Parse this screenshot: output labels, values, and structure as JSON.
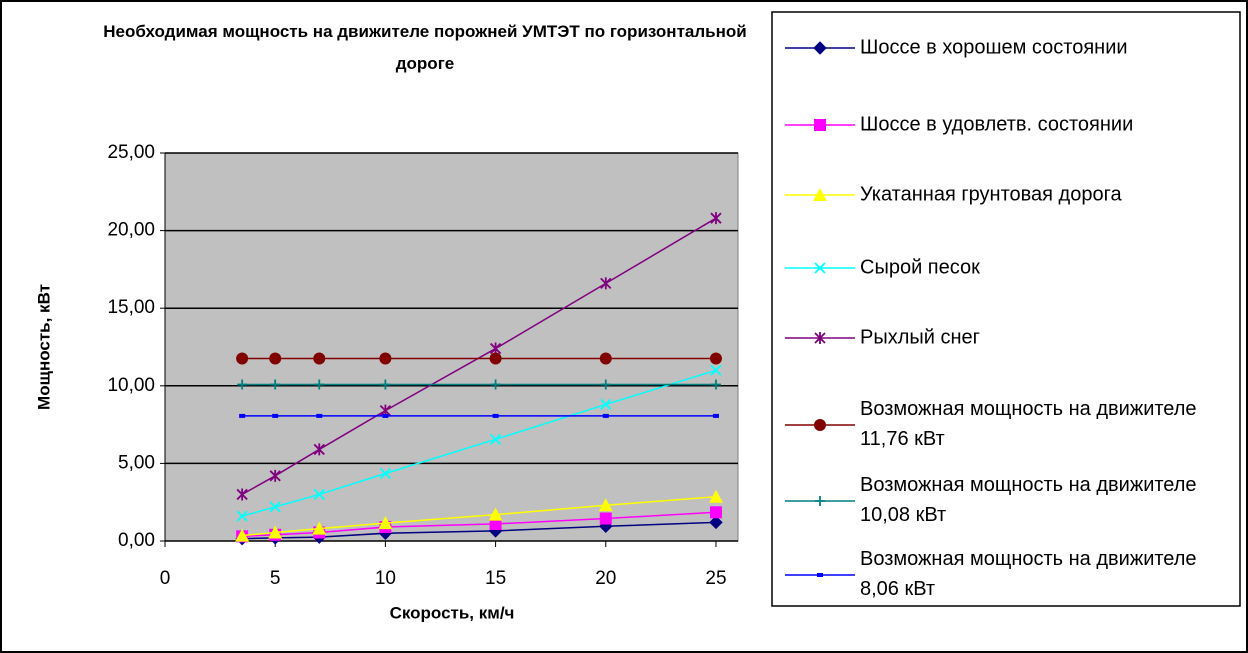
{
  "chart_data": {
    "type": "line",
    "title": "Необходимая мощность на движителе порожней УМТЭТ по горизонтальной дороге",
    "xlabel": "Скорость, км/ч",
    "ylabel": "Мощность, кВт",
    "x": [
      3.5,
      5,
      7,
      10,
      15,
      20,
      25
    ],
    "xlim": [
      0,
      26
    ],
    "xticks": [
      0,
      5,
      10,
      15,
      20,
      25
    ],
    "ylim": [
      0,
      25
    ],
    "yticks": [
      {
        "value": 0,
        "label": "0,00"
      },
      {
        "value": 5,
        "label": "5,00"
      },
      {
        "value": 10,
        "label": "10,00"
      },
      {
        "value": 15,
        "label": "15,00"
      },
      {
        "value": 20,
        "label": "20,00"
      },
      {
        "value": 25,
        "label": "25,00"
      }
    ],
    "grid": true,
    "legend": "right",
    "series": [
      {
        "name": "Шоссе в хорошем состоянии",
        "color": "#000080",
        "marker": "diamond",
        "values": [
          0.15,
          0.2,
          0.25,
          0.5,
          0.65,
          0.95,
          1.2
        ]
      },
      {
        "name": "Шоссе в удовлетв. состоянии",
        "color": "#ff00ff",
        "marker": "square",
        "values": [
          0.3,
          0.4,
          0.55,
          0.9,
          1.1,
          1.45,
          1.85
        ]
      },
      {
        "name": "Укатанная грунтовая дорога",
        "color": "#ffff00",
        "marker": "triangle",
        "values": [
          0.35,
          0.55,
          0.8,
          1.15,
          1.7,
          2.3,
          2.85
        ]
      },
      {
        "name": "Сырой песок",
        "color": "#00ffff",
        "marker": "x",
        "values": [
          1.6,
          2.2,
          3.0,
          4.35,
          6.55,
          8.8,
          11.0
        ]
      },
      {
        "name": "Рыхлый снег",
        "color": "#800080",
        "marker": "star",
        "values": [
          3.0,
          4.2,
          5.9,
          8.4,
          12.4,
          16.6,
          20.8
        ]
      },
      {
        "name": "Возможная мощность на движителе 11,76 кВт",
        "color": "#800000",
        "marker": "circle",
        "values": [
          11.76,
          11.76,
          11.76,
          11.76,
          11.76,
          11.76,
          11.76
        ]
      },
      {
        "name": "Возможная мощность на движителе 10,08 кВт",
        "color": "#008080",
        "marker": "plus",
        "values": [
          10.08,
          10.08,
          10.08,
          10.08,
          10.08,
          10.08,
          10.08
        ]
      },
      {
        "name": "Возможная мощность на движителе 8,06 кВт",
        "color": "#0000ff",
        "marker": "dash",
        "values": [
          8.06,
          8.06,
          8.06,
          8.06,
          8.06,
          8.06,
          8.06
        ]
      }
    ]
  }
}
